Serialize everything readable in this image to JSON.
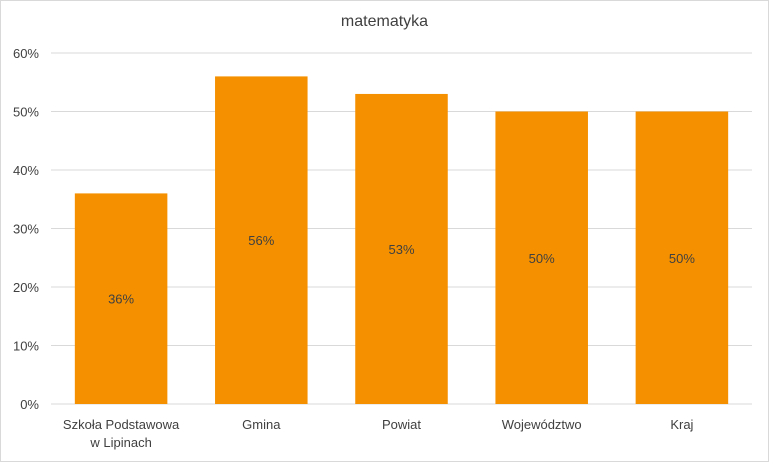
{
  "chart_data": {
    "type": "bar",
    "title": "matematyka",
    "categories": [
      [
        "Szkoła Podstawowa",
        "w Lipinach"
      ],
      [
        "Gmina"
      ],
      [
        "Powiat"
      ],
      [
        "Województwo"
      ],
      [
        "Kraj"
      ]
    ],
    "values": [
      36,
      56,
      53,
      50,
      50
    ],
    "data_labels": [
      "36%",
      "56%",
      "53%",
      "50%",
      "50%"
    ],
    "y_ticks": [
      "0%",
      "10%",
      "20%",
      "30%",
      "40%",
      "50%",
      "60%"
    ],
    "ylim": [
      0,
      60
    ],
    "grid": true,
    "bar_color": "#f59100",
    "grid_color": "#d9d9d9",
    "text_color": "#404040"
  }
}
